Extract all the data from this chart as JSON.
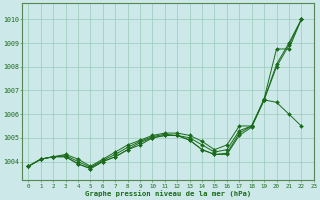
{
  "title": "Graphe pression niveau de la mer (hPa)",
  "xlabel_ticks": [
    0,
    1,
    2,
    3,
    4,
    5,
    6,
    7,
    8,
    9,
    10,
    11,
    12,
    13,
    14,
    15,
    16,
    17,
    18,
    19,
    20,
    21,
    22,
    23
  ],
  "ylim": [
    1003.2,
    1010.7
  ],
  "yticks": [
    1004,
    1005,
    1006,
    1007,
    1008,
    1009,
    1010
  ],
  "bg_color": "#cce8e8",
  "grid_color": "#99ccbb",
  "line_color": "#1a6b1a",
  "lines": [
    [
      1003.8,
      1004.1,
      1004.2,
      1004.2,
      1003.9,
      1003.7,
      1004.0,
      1004.2,
      1004.5,
      1004.7,
      1005.0,
      1005.1,
      1005.1,
      1004.9,
      1004.5,
      1004.3,
      1004.3,
      1005.1,
      1005.45,
      1006.6,
      1008.0,
      1008.9,
      1010.0
    ],
    [
      1003.8,
      1004.1,
      1004.2,
      1004.2,
      1003.9,
      1003.7,
      1004.0,
      1004.2,
      1004.5,
      1004.8,
      1005.0,
      1005.1,
      1005.1,
      1004.9,
      1004.5,
      1004.3,
      1004.35,
      1005.2,
      1005.5,
      1006.6,
      1008.1,
      1009.0,
      1010.0
    ],
    [
      1003.8,
      1004.1,
      1004.2,
      1004.25,
      1004.0,
      1003.75,
      1004.05,
      1004.3,
      1004.6,
      1004.85,
      1005.05,
      1005.15,
      1005.1,
      1005.0,
      1004.7,
      1004.4,
      1004.5,
      1005.3,
      1005.5,
      1006.6,
      1006.5,
      1006.0,
      1005.5
    ],
    [
      1003.8,
      1004.1,
      1004.2,
      1004.3,
      1004.1,
      1003.8,
      1004.1,
      1004.4,
      1004.7,
      1004.9,
      1005.1,
      1005.2,
      1005.2,
      1005.1,
      1004.85,
      1004.5,
      1004.7,
      1005.5,
      1005.5,
      1006.65,
      1008.75,
      1008.75,
      1010.0
    ]
  ]
}
